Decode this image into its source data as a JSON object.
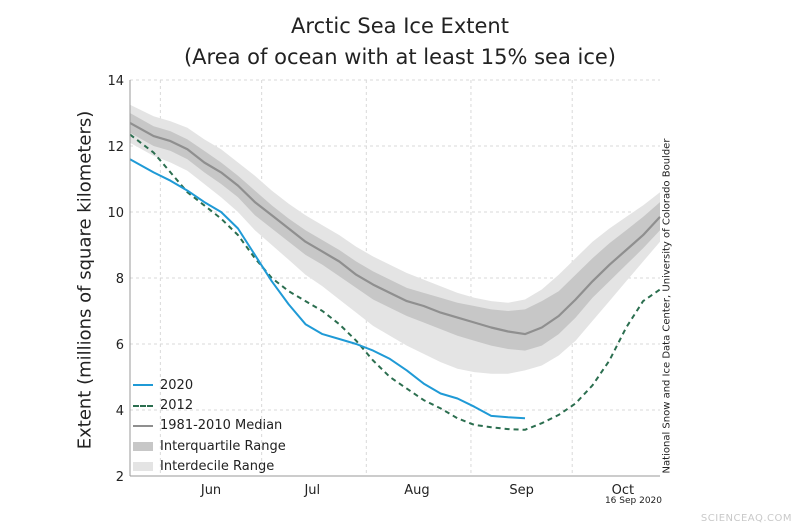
{
  "colors": {
    "series_2020": "#1f9ad6",
    "series_2012": "#2b6e4f",
    "median": "#8f8f8f",
    "interquartile": "#c7c7c7",
    "interdecile": "#e4e4e4",
    "grid": "#d9d9d9"
  },
  "credit": "National Snow and Ice Data Center, University of Colorado Boulder",
  "date_stamp": "16 Sep 2020",
  "watermark": "SCIENCEAQ.COM",
  "chart_data": {
    "type": "line",
    "title": "Arctic Sea Ice Extent",
    "subtitle": "(Area of ocean with at least 15% sea ice)",
    "ylabel": "Extent (millions of square kilometers)",
    "xlabel": "",
    "ylim": [
      2,
      14
    ],
    "yticks": [
      "2",
      "4",
      "6",
      "8",
      "10",
      "12",
      "14"
    ],
    "x_unit": "day of year",
    "xlim": [
      143,
      300
    ],
    "month_ticks": [
      {
        "label": "Jun",
        "day": 167
      },
      {
        "label": "Jul",
        "day": 197
      },
      {
        "label": "Aug",
        "day": 228
      },
      {
        "label": "Sep",
        "day": 259
      },
      {
        "label": "Oct",
        "day": 289
      }
    ],
    "month_bounds": [
      152,
      182,
      213,
      244,
      274
    ],
    "grid": true,
    "legend_position": "bottom-left",
    "legend": [
      "2020",
      "2012",
      "1981-2010 Median",
      "Interquartile Range",
      "Interdecile Range"
    ],
    "x": [
      143,
      150,
      155,
      160,
      165,
      170,
      175,
      180,
      185,
      190,
      195,
      200,
      205,
      210,
      215,
      220,
      225,
      230,
      235,
      240,
      245,
      250,
      255,
      260,
      265,
      270,
      275,
      280,
      285,
      290,
      295,
      300
    ],
    "median": [
      12.7,
      12.3,
      12.15,
      11.9,
      11.5,
      11.2,
      10.8,
      10.3,
      9.9,
      9.5,
      9.1,
      8.8,
      8.5,
      8.1,
      7.8,
      7.55,
      7.3,
      7.15,
      6.95,
      6.8,
      6.65,
      6.5,
      6.38,
      6.3,
      6.5,
      6.85,
      7.35,
      7.9,
      8.4,
      8.85,
      9.3,
      9.85
    ],
    "iqr_upper": [
      13.0,
      12.6,
      12.45,
      12.2,
      11.85,
      11.5,
      11.1,
      10.65,
      10.2,
      9.8,
      9.45,
      9.15,
      8.85,
      8.5,
      8.2,
      7.95,
      7.7,
      7.55,
      7.4,
      7.25,
      7.15,
      7.05,
      7.0,
      7.05,
      7.3,
      7.6,
      8.1,
      8.6,
      9.05,
      9.45,
      9.85,
      10.3
    ],
    "iqr_lower": [
      12.4,
      12.0,
      11.85,
      11.6,
      11.2,
      10.85,
      10.45,
      9.9,
      9.5,
      9.1,
      8.7,
      8.4,
      8.05,
      7.7,
      7.35,
      7.1,
      6.85,
      6.65,
      6.45,
      6.25,
      6.1,
      5.95,
      5.85,
      5.8,
      5.95,
      6.3,
      6.8,
      7.4,
      7.9,
      8.4,
      8.9,
      9.45
    ],
    "idr_upper": [
      13.25,
      12.9,
      12.75,
      12.55,
      12.2,
      11.9,
      11.5,
      11.1,
      10.65,
      10.25,
      9.9,
      9.6,
      9.3,
      8.95,
      8.65,
      8.4,
      8.15,
      7.95,
      7.75,
      7.55,
      7.4,
      7.3,
      7.25,
      7.35,
      7.65,
      8.1,
      8.6,
      9.1,
      9.5,
      9.85,
      10.2,
      10.6
    ],
    "idr_lower": [
      12.1,
      11.7,
      11.5,
      11.25,
      10.85,
      10.45,
      10.0,
      9.45,
      9.0,
      8.55,
      8.1,
      7.75,
      7.35,
      6.95,
      6.55,
      6.25,
      5.95,
      5.7,
      5.45,
      5.25,
      5.15,
      5.1,
      5.1,
      5.2,
      5.35,
      5.65,
      6.1,
      6.7,
      7.3,
      7.9,
      8.5,
      9.1
    ],
    "series": [
      {
        "name": "2020",
        "x": [
          143,
          150,
          155,
          160,
          165,
          170,
          175,
          180,
          185,
          190,
          195,
          200,
          205,
          210,
          215,
          220,
          225,
          230,
          235,
          240,
          245,
          250,
          255,
          260
        ],
        "values": [
          11.6,
          11.2,
          10.95,
          10.65,
          10.3,
          10.0,
          9.5,
          8.7,
          7.9,
          7.2,
          6.6,
          6.3,
          6.15,
          6.0,
          5.8,
          5.55,
          5.2,
          4.8,
          4.5,
          4.35,
          4.1,
          3.82,
          3.78,
          3.75
        ]
      },
      {
        "name": "2012",
        "x": [
          143,
          150,
          155,
          160,
          165,
          170,
          175,
          180,
          185,
          190,
          195,
          200,
          205,
          210,
          215,
          220,
          225,
          230,
          235,
          240,
          245,
          250,
          255,
          260,
          265,
          270,
          275,
          280,
          285,
          290,
          295,
          300
        ],
        "values": [
          12.35,
          11.8,
          11.2,
          10.6,
          10.2,
          9.8,
          9.3,
          8.6,
          8.0,
          7.6,
          7.3,
          7.0,
          6.6,
          6.1,
          5.5,
          5.0,
          4.65,
          4.3,
          4.05,
          3.75,
          3.55,
          3.48,
          3.42,
          3.4,
          3.6,
          3.85,
          4.2,
          4.75,
          5.5,
          6.5,
          7.3,
          7.65
        ]
      }
    ]
  }
}
